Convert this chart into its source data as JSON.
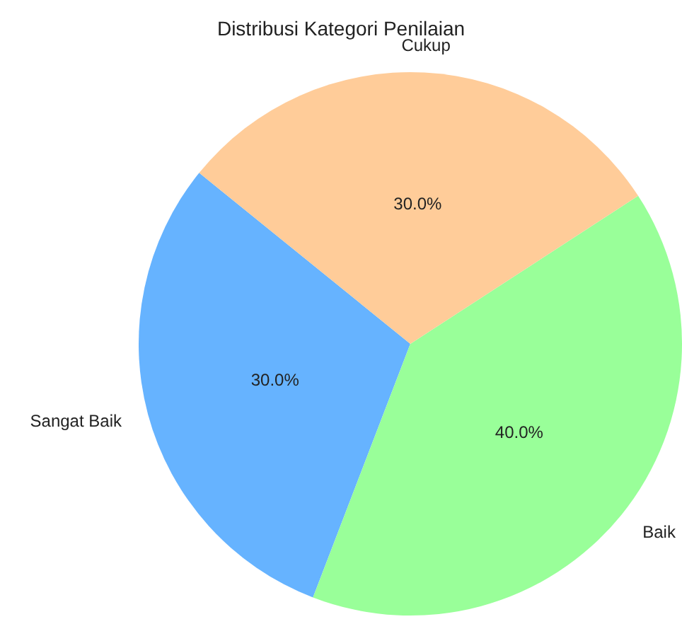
{
  "chart_data": {
    "type": "pie",
    "title": "Distribusi Kategori Penilaian",
    "categories": [
      "Sangat Baik",
      "Baik",
      "Cukup"
    ],
    "values": [
      30,
      40,
      30
    ],
    "colors": [
      "#66b3ff",
      "#99ff99",
      "#ffcc99"
    ],
    "value_labels": [
      "30.0%",
      "40.0%",
      "30.0%"
    ]
  }
}
